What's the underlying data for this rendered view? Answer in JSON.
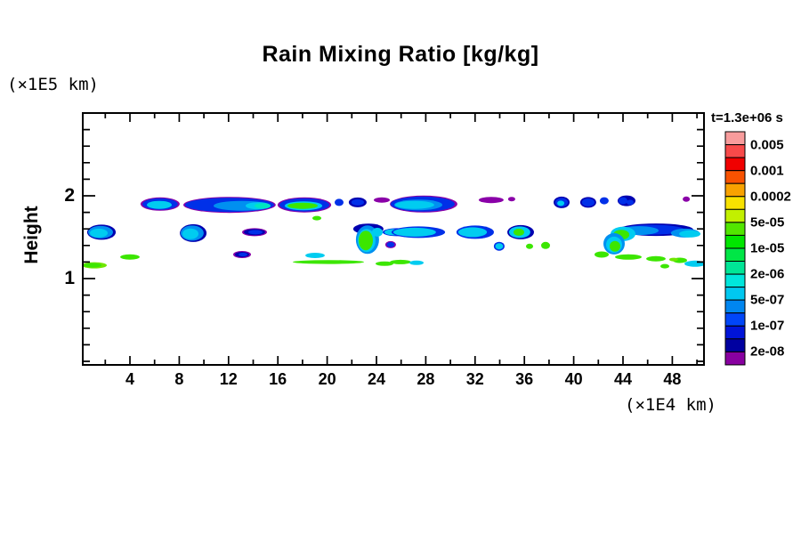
{
  "chart_data": {
    "type": "filled_contour",
    "title": "Rain Mixing Ratio [kg/kg]",
    "time_label": "t=1.3e+06 s",
    "x": {
      "unit_label": "(×1E4 km)",
      "ticks": [
        4,
        8,
        12,
        16,
        20,
        24,
        28,
        32,
        36,
        40,
        44,
        48
      ],
      "minor_step": 2,
      "min": 0,
      "max": 50.4
    },
    "y": {
      "label": "Height",
      "unit_label": "(×1E5 km)",
      "ticks": [
        1,
        2
      ],
      "minor_step": 0.2,
      "min": 0,
      "max": 3.0
    },
    "colorbar": {
      "levels": [
        "0.005",
        "0.001",
        "0.0002",
        "5e-05",
        "1e-05",
        "2e-06",
        "5e-07",
        "1e-07",
        "2e-08"
      ],
      "colors": [
        "#F89C9C",
        "#F84A4A",
        "#F00000",
        "#F85200",
        "#F8A200",
        "#F8E200",
        "#C2F000",
        "#52E600",
        "#00E600",
        "#00E646",
        "#00E696",
        "#00E6DC",
        "#00C8F0",
        "#0086F0",
        "#0046F8",
        "#0014D8",
        "#0000A0",
        "#8800A0"
      ]
    },
    "palette": {
      "P": "#8A00A8",
      "N": "#0000B0",
      "B": "#0030E8",
      "SB": "#0090F0",
      "C": "#00CCF0",
      "T": "#00E6C0",
      "G": "#3CE600",
      "LG": "#70E600"
    },
    "blobs": [
      [
        6.45,
        1.9,
        1.59,
        0.081,
        "P"
      ],
      [
        6.45,
        1.9,
        1.44,
        0.07,
        "B"
      ],
      [
        6.38,
        1.89,
        1.01,
        0.048,
        "C"
      ],
      [
        12.08,
        1.89,
        3.75,
        0.097,
        "P"
      ],
      [
        12.08,
        1.89,
        3.61,
        0.086,
        "B"
      ],
      [
        13.1,
        1.88,
        2.31,
        0.059,
        "SB"
      ],
      [
        14.4,
        1.88,
        1.01,
        0.043,
        "C"
      ],
      [
        14.76,
        1.88,
        0.65,
        0.032,
        "T"
      ],
      [
        18.15,
        1.89,
        2.17,
        0.091,
        "P"
      ],
      [
        18.15,
        1.89,
        2.02,
        0.081,
        "B"
      ],
      [
        18.08,
        1.88,
        1.52,
        0.054,
        "C"
      ],
      [
        18.01,
        1.88,
        1.23,
        0.038,
        "G"
      ],
      [
        20.97,
        1.92,
        0.36,
        0.043,
        "B"
      ],
      [
        22.48,
        1.92,
        0.72,
        0.059,
        "N"
      ],
      [
        22.48,
        1.92,
        0.51,
        0.038,
        "B"
      ],
      [
        24.43,
        1.95,
        0.65,
        0.032,
        "P"
      ],
      [
        27.83,
        1.9,
        2.74,
        0.102,
        "P"
      ],
      [
        27.75,
        1.9,
        2.6,
        0.091,
        "B"
      ],
      [
        27.39,
        1.89,
        1.95,
        0.065,
        "SB"
      ],
      [
        27.1,
        1.89,
        1.59,
        0.048,
        "C"
      ],
      [
        33.31,
        1.95,
        1.01,
        0.038,
        "P"
      ],
      [
        34.97,
        1.96,
        0.29,
        0.027,
        "P"
      ],
      [
        39.02,
        1.92,
        0.65,
        0.07,
        "N"
      ],
      [
        39.02,
        1.92,
        0.51,
        0.054,
        "B"
      ],
      [
        38.95,
        1.91,
        0.29,
        0.032,
        "C"
      ],
      [
        41.18,
        1.92,
        0.65,
        0.065,
        "N"
      ],
      [
        41.18,
        1.92,
        0.51,
        0.048,
        "B"
      ],
      [
        42.48,
        1.94,
        0.36,
        0.043,
        "B"
      ],
      [
        44.29,
        1.94,
        0.72,
        0.065,
        "N"
      ],
      [
        44.0,
        1.94,
        0.36,
        0.043,
        "B"
      ],
      [
        44.58,
        1.92,
        0.29,
        0.032,
        "B"
      ],
      [
        49.13,
        1.96,
        0.29,
        0.032,
        "P"
      ],
      [
        1.69,
        1.56,
        1.16,
        0.091,
        "N"
      ],
      [
        1.62,
        1.56,
        1.01,
        0.075,
        "SB"
      ],
      [
        1.47,
        1.55,
        0.72,
        0.054,
        "C"
      ],
      [
        9.13,
        1.55,
        1.08,
        0.108,
        "N"
      ],
      [
        9.05,
        1.55,
        0.94,
        0.091,
        "SB"
      ],
      [
        8.91,
        1.54,
        0.65,
        0.065,
        "C"
      ],
      [
        14.11,
        1.56,
        1.01,
        0.048,
        "P"
      ],
      [
        14.11,
        1.56,
        0.87,
        0.038,
        "N"
      ],
      [
        14.18,
        1.56,
        0.58,
        0.027,
        "B"
      ],
      [
        23.34,
        1.6,
        1.23,
        0.065,
        "N"
      ],
      [
        23.27,
        1.47,
        0.94,
        0.172,
        "SB"
      ],
      [
        23.2,
        1.46,
        0.72,
        0.14,
        "C"
      ],
      [
        23.13,
        1.46,
        0.58,
        0.118,
        "G"
      ],
      [
        24.07,
        1.56,
        0.43,
        0.054,
        "C"
      ],
      [
        25.66,
        1.56,
        1.16,
        0.048,
        "B"
      ],
      [
        25.37,
        1.56,
        0.72,
        0.038,
        "C"
      ],
      [
        25.15,
        1.41,
        0.43,
        0.043,
        "P"
      ],
      [
        25.15,
        1.41,
        0.32,
        0.032,
        "B"
      ],
      [
        27.39,
        1.56,
        2.17,
        0.07,
        "B"
      ],
      [
        27.1,
        1.56,
        1.73,
        0.054,
        "C"
      ],
      [
        32.01,
        1.56,
        1.52,
        0.081,
        "B"
      ],
      [
        31.8,
        1.56,
        1.16,
        0.059,
        "C"
      ],
      [
        35.7,
        1.56,
        1.08,
        0.086,
        "N"
      ],
      [
        35.62,
        1.56,
        0.87,
        0.07,
        "C"
      ],
      [
        35.55,
        1.56,
        0.43,
        0.043,
        "G"
      ],
      [
        46.67,
        1.59,
        3.03,
        0.075,
        "N"
      ],
      [
        46.38,
        1.59,
        2.6,
        0.059,
        "B"
      ],
      [
        45.3,
        1.58,
        1.59,
        0.054,
        "SB"
      ],
      [
        44.0,
        1.54,
        1.01,
        0.086,
        "C"
      ],
      [
        43.86,
        1.53,
        0.65,
        0.059,
        "G"
      ],
      [
        43.28,
        1.42,
        0.87,
        0.129,
        "SB"
      ],
      [
        43.28,
        1.41,
        0.65,
        0.097,
        "C"
      ],
      [
        43.35,
        1.39,
        0.43,
        0.065,
        "G"
      ],
      [
        49.05,
        1.55,
        1.16,
        0.054,
        "SB"
      ],
      [
        49.42,
        1.54,
        0.87,
        0.043,
        "C"
      ],
      [
        1.11,
        1.16,
        1.01,
        0.038,
        "LG"
      ],
      [
        0.97,
        1.16,
        0.72,
        0.027,
        "G"
      ],
      [
        4.0,
        1.26,
        0.79,
        0.032,
        "G"
      ],
      [
        13.1,
        1.29,
        0.72,
        0.043,
        "P"
      ],
      [
        13.1,
        1.29,
        0.58,
        0.032,
        "N"
      ],
      [
        13.17,
        1.29,
        0.36,
        0.022,
        "B"
      ],
      [
        19.02,
        1.28,
        0.79,
        0.032,
        "C"
      ],
      [
        19.16,
        1.73,
        0.36,
        0.027,
        "G"
      ],
      [
        20.1,
        1.2,
        2.89,
        0.024,
        "G"
      ],
      [
        24.65,
        1.18,
        0.72,
        0.027,
        "G"
      ],
      [
        25.95,
        1.2,
        0.87,
        0.027,
        "G"
      ],
      [
        27.25,
        1.19,
        0.58,
        0.027,
        "C"
      ],
      [
        33.96,
        1.39,
        0.43,
        0.054,
        "B"
      ],
      [
        33.96,
        1.39,
        0.32,
        0.038,
        "C"
      ],
      [
        36.42,
        1.39,
        0.29,
        0.032,
        "G"
      ],
      [
        37.72,
        1.4,
        0.36,
        0.043,
        "G"
      ],
      [
        42.27,
        1.29,
        0.58,
        0.038,
        "G"
      ],
      [
        44.43,
        1.26,
        1.08,
        0.032,
        "G"
      ],
      [
        46.67,
        1.24,
        0.79,
        0.032,
        "G"
      ],
      [
        47.39,
        1.15,
        0.36,
        0.027,
        "G"
      ],
      [
        48.62,
        1.22,
        0.58,
        0.032,
        "G"
      ],
      [
        48.11,
        1.23,
        0.36,
        0.022,
        "LG"
      ],
      [
        49.85,
        1.18,
        0.87,
        0.038,
        "C"
      ]
    ]
  }
}
